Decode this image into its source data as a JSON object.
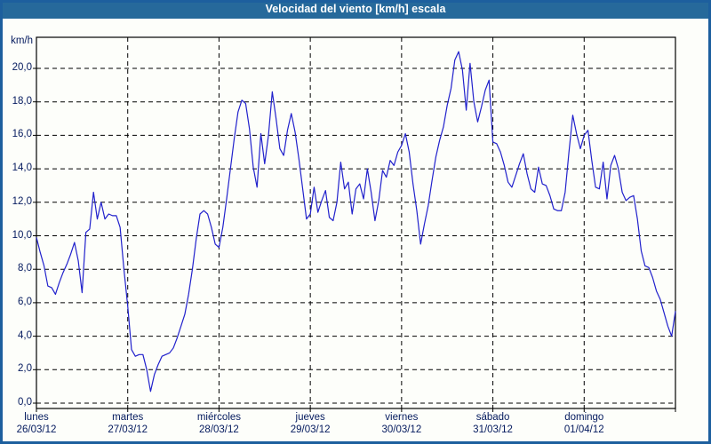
{
  "header": {
    "title": "Velocidad del viento [km/h] escala"
  },
  "y_axis": {
    "unit": "km/h",
    "ticks": [
      "20,0",
      "18,0",
      "16,0",
      "14,0",
      "12,0",
      "10,0",
      "8,0",
      "6,0",
      "4,0",
      "2,0",
      "0,0"
    ]
  },
  "x_axis": {
    "days": [
      {
        "name": "lunes",
        "date": "26/03/12"
      },
      {
        "name": "martes",
        "date": "27/03/12"
      },
      {
        "name": "miércoles",
        "date": "28/03/12"
      },
      {
        "name": "jueves",
        "date": "29/03/12"
      },
      {
        "name": "viernes",
        "date": "30/03/12"
      },
      {
        "name": "sábado",
        "date": "31/03/12"
      },
      {
        "name": "domingo",
        "date": "01/04/12"
      }
    ]
  },
  "colors": {
    "line": "#2121cc",
    "grid": "#000000",
    "frame": "#1d5f9e",
    "titlebar": "#26699b",
    "label_text": "#041a5e",
    "background": "#fdfefa"
  },
  "chart_data": {
    "type": "line",
    "title": "Velocidad del viento [km/h] escala",
    "xlabel": "",
    "ylabel": "km/h",
    "ylim": [
      0,
      22
    ],
    "y_tick_step": 2,
    "grid": "dashed",
    "legend_position": "none",
    "x_categories": [
      "lunes 26/03/12",
      "martes 27/03/12",
      "miércoles 28/03/12",
      "jueves 29/03/12",
      "viernes 30/03/12",
      "sábado 31/03/12",
      "domingo 01/04/12"
    ],
    "samples_per_day": 24,
    "x_unit": "hour",
    "series": [
      {
        "name": "Velocidad del viento [km/h]",
        "color": "#2121cc",
        "values": [
          9.9,
          9.0,
          8.2,
          7.0,
          6.9,
          6.5,
          7.2,
          7.8,
          8.3,
          8.9,
          9.6,
          8.5,
          6.6,
          10.2,
          10.4,
          12.6,
          11.0,
          12.0,
          11.0,
          11.3,
          11.2,
          11.2,
          10.5,
          8.0,
          5.8,
          3.2,
          2.8,
          2.9,
          2.9,
          2.0,
          0.7,
          1.7,
          2.3,
          2.8,
          2.9,
          3.0,
          3.3,
          3.9,
          4.6,
          5.3,
          6.5,
          8.0,
          9.8,
          11.3,
          11.5,
          11.3,
          10.5,
          9.5,
          9.3,
          10.5,
          12.2,
          14.0,
          15.8,
          17.4,
          18.1,
          17.9,
          16.4,
          14.1,
          12.9,
          16.1,
          14.3,
          16.0,
          18.6,
          17.0,
          15.2,
          14.8,
          16.3,
          17.3,
          16.2,
          14.6,
          12.8,
          11.0,
          11.3,
          12.9,
          11.4,
          12.1,
          12.7,
          11.1,
          10.9,
          12.0,
          14.4,
          12.8,
          13.2,
          11.3,
          12.8,
          13.1,
          12.2,
          14.0,
          12.6,
          10.9,
          12.1,
          13.9,
          13.5,
          14.5,
          14.2,
          15.0,
          15.4,
          16.1,
          15.0,
          13.1,
          11.5,
          9.5,
          10.7,
          11.8,
          13.3,
          14.7,
          15.7,
          16.5,
          17.8,
          18.8,
          20.5,
          21.0,
          19.9,
          17.5,
          20.3,
          18.0,
          16.8,
          17.7,
          18.7,
          19.3,
          15.6,
          15.5,
          15.0,
          14.2,
          13.2,
          12.9,
          13.6,
          14.3,
          14.9,
          13.7,
          12.8,
          12.6,
          14.1,
          13.1,
          13.0,
          12.4,
          11.6,
          11.5,
          11.5,
          12.6,
          15.0,
          17.2,
          16.1,
          15.2,
          16.0,
          16.3,
          14.5,
          12.9,
          12.8,
          14.4,
          12.2,
          14.2,
          14.8,
          14.0,
          12.6,
          12.1,
          12.3,
          12.4,
          11.0,
          9.1,
          8.2,
          8.1,
          7.5,
          6.7,
          6.2,
          5.4,
          4.6,
          4.0,
          5.5
        ]
      }
    ]
  }
}
